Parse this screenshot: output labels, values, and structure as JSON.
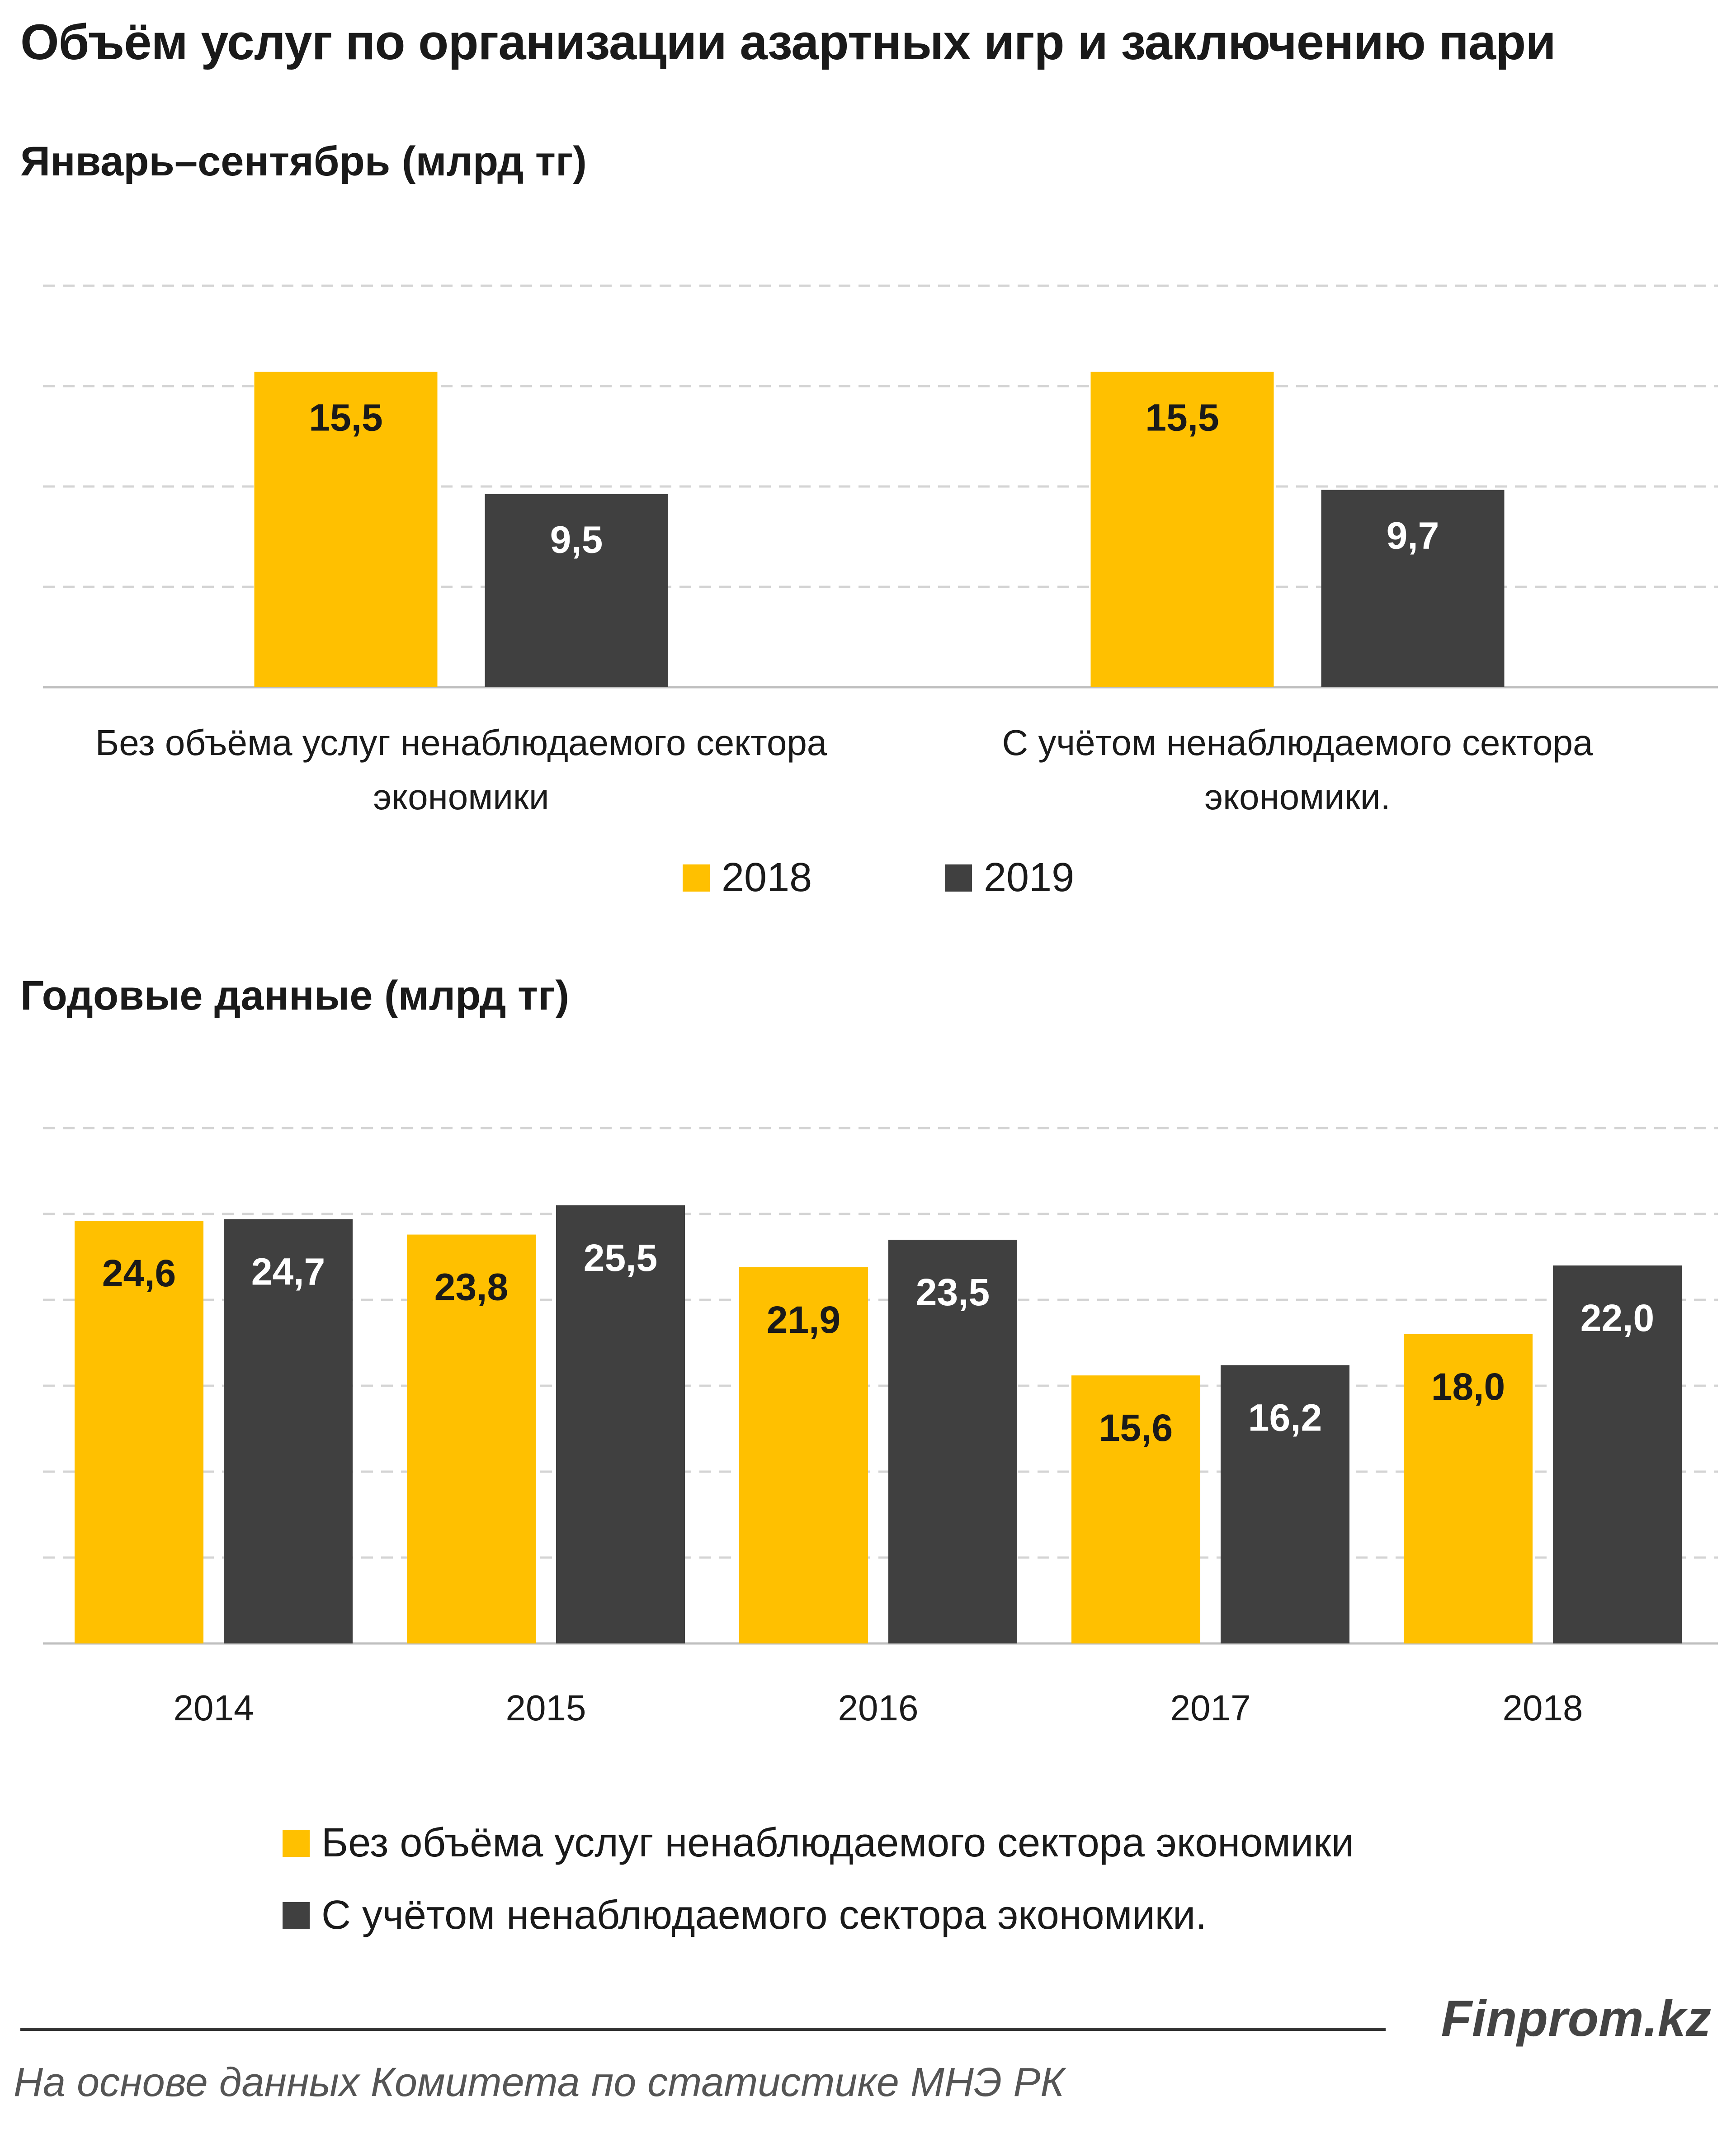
{
  "title": "Объём услуг по организации азартных игр и заключению пари",
  "colors": {
    "y2018": "#FFC000",
    "y2019": "#404040",
    "grid": "#d4d4d4"
  },
  "chart_data": [
    {
      "type": "bar",
      "title": "Январь–сентябрь   (млрд тг)",
      "categories": [
        [
          "Без объёма услуг ненаблюдаемого сектора",
          "экономики"
        ],
        [
          "С учётом ненаблюдаемого сектора",
          "экономики."
        ]
      ],
      "series": [
        {
          "name": "2018",
          "values": [
            15.5,
            15.5
          ],
          "labels": [
            "15,5",
            "15,5"
          ]
        },
        {
          "name": "2019",
          "values": [
            9.5,
            9.7
          ],
          "labels": [
            "9,5",
            "9,7"
          ]
        }
      ],
      "ylim": [
        0,
        20
      ],
      "grid": true,
      "legend": "bottom"
    },
    {
      "type": "bar",
      "title": "Годовые данные  (млрд тг)",
      "categories": [
        "2014",
        "2015",
        "2016",
        "2017",
        "2018"
      ],
      "series": [
        {
          "name": "Без объёма услуг ненаблюдаемого сектора экономики",
          "values": [
            24.6,
            23.8,
            21.9,
            15.6,
            18.0
          ],
          "labels": [
            "24,6",
            "23,8",
            "21,9",
            "15,6",
            "18,0"
          ]
        },
        {
          "name": "С учётом ненаблюдаемого сектора экономики.",
          "values": [
            24.7,
            25.5,
            23.5,
            16.2,
            22.0
          ],
          "labels": [
            "24,7",
            "25,5",
            "23,5",
            "16,2",
            "22,0"
          ]
        }
      ],
      "ylim": [
        0,
        30
      ],
      "grid": true,
      "legend": "bottom"
    }
  ],
  "footer": {
    "brand": "Finprom.kz",
    "source": "На основе данных  Комитета по статистике МНЭ РК"
  }
}
